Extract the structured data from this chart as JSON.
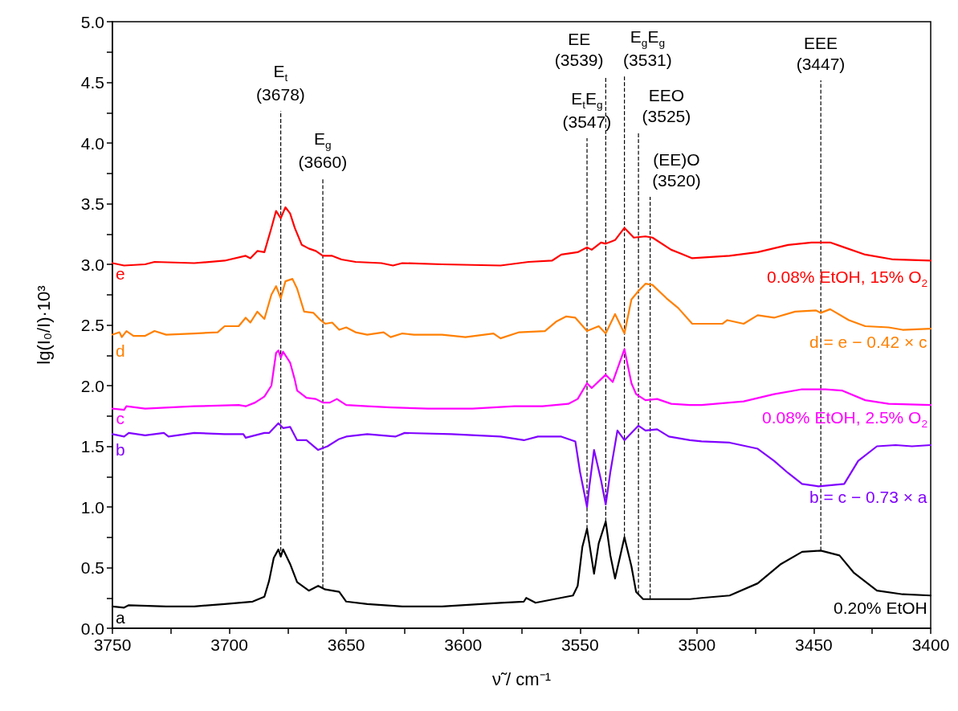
{
  "chart_data": {
    "type": "line",
    "xlabel": "ν̃ / cm⁻¹",
    "ylabel": "lg(I₀/I)·10³",
    "xlim": [
      3750,
      3400
    ],
    "ylim": [
      0,
      5
    ],
    "xticks": [
      3750,
      {
        "value": 3725,
        "label": null
      },
      3700,
      {
        "value": 3675,
        "label": null
      },
      3650,
      {
        "value": 3625,
        "label": null
      },
      3600,
      {
        "value": 3575,
        "label": null
      },
      3550,
      {
        "value": 3525,
        "label": null
      },
      3500,
      {
        "value": 3475,
        "label": null
      },
      3450,
      {
        "value": 3425,
        "label": null
      },
      3400
    ],
    "yticks": [
      {
        "value": 0,
        "label": "0.0"
      },
      {
        "value": 0.25,
        "label": null
      },
      0.5,
      {
        "value": 0.75,
        "label": null
      },
      {
        "value": 1,
        "label": "1.0"
      },
      {
        "value": 1.25,
        "label": null
      },
      1.5,
      {
        "value": 1.75,
        "label": null
      },
      {
        "value": 2,
        "label": "2.0"
      },
      {
        "value": 2.25,
        "label": null
      },
      2.5,
      {
        "value": 2.75,
        "label": null
      },
      {
        "value": 3,
        "label": "3.0"
      },
      {
        "value": 3.25,
        "label": null
      },
      3.5,
      {
        "value": 3.75,
        "label": null
      },
      {
        "value": 4,
        "label": "4.0"
      },
      {
        "value": 4.25,
        "label": null
      },
      4.5,
      {
        "value": 4.75,
        "label": null
      },
      {
        "value": 5,
        "label": "5.0"
      }
    ],
    "marker": "none",
    "series": [
      {
        "name": "0.20% EtOH",
        "color": "#000000",
        "x": [
          3750,
          3745,
          3743,
          3727,
          3715,
          3702,
          3690,
          3685,
          3683,
          3681,
          3679,
          3678,
          3677,
          3674,
          3671,
          3666,
          3662,
          3659,
          3653,
          3650,
          3641,
          3626,
          3609,
          3584,
          3574,
          3573,
          3569,
          3553,
          3551,
          3549,
          3547,
          3544,
          3542,
          3539,
          3537,
          3535,
          3533,
          3531,
          3528,
          3526,
          3523,
          3517,
          3503,
          3498,
          3486,
          3474,
          3464,
          3455,
          3447,
          3439,
          3433,
          3423,
          3412,
          3400
        ],
        "values": [
          0.18,
          0.17,
          0.19,
          0.18,
          0.18,
          0.2,
          0.22,
          0.26,
          0.39,
          0.58,
          0.65,
          0.59,
          0.65,
          0.53,
          0.38,
          0.31,
          0.35,
          0.32,
          0.3,
          0.22,
          0.2,
          0.18,
          0.18,
          0.21,
          0.22,
          0.25,
          0.21,
          0.27,
          0.35,
          0.67,
          0.82,
          0.45,
          0.7,
          0.88,
          0.6,
          0.41,
          0.58,
          0.75,
          0.51,
          0.3,
          0.24,
          0.24,
          0.24,
          0.25,
          0.27,
          0.37,
          0.53,
          0.63,
          0.64,
          0.6,
          0.46,
          0.31,
          0.28,
          0.27
        ]
      },
      {
        "name": "b = c − 0.73 × a",
        "color": "#8000ff",
        "x": [
          3750,
          3745,
          3743,
          3736,
          3728,
          3726,
          3715,
          3702,
          3694,
          3693,
          3685,
          3683,
          3679,
          3677,
          3674,
          3671,
          3667,
          3662,
          3658,
          3653,
          3650,
          3641,
          3629,
          3625,
          3605,
          3584,
          3574,
          3568,
          3558,
          3552,
          3550,
          3547,
          3546,
          3544,
          3541,
          3539,
          3537,
          3534,
          3531,
          3525,
          3522,
          3517,
          3512,
          3503,
          3498,
          3486,
          3474,
          3467,
          3461,
          3455,
          3448,
          3437,
          3431,
          3423,
          3415,
          3408,
          3400
        ],
        "values": [
          1.6,
          1.58,
          1.61,
          1.59,
          1.61,
          1.58,
          1.61,
          1.6,
          1.6,
          1.57,
          1.61,
          1.61,
          1.69,
          1.65,
          1.66,
          1.55,
          1.55,
          1.47,
          1.5,
          1.56,
          1.58,
          1.6,
          1.58,
          1.61,
          1.6,
          1.58,
          1.55,
          1.58,
          1.58,
          1.54,
          1.29,
          1.0,
          1.17,
          1.47,
          1.22,
          1.02,
          1.29,
          1.63,
          1.55,
          1.67,
          1.63,
          1.64,
          1.58,
          1.55,
          1.54,
          1.53,
          1.48,
          1.38,
          1.28,
          1.19,
          1.17,
          1.19,
          1.38,
          1.5,
          1.51,
          1.5,
          1.51
        ]
      },
      {
        "name": "0.08% EtOH, 2.5% O$_{2}$",
        "color": "#ff00ff",
        "x": [
          3750,
          3745,
          3744,
          3736,
          3715,
          3696,
          3693,
          3689,
          3685,
          3682,
          3680,
          3679,
          3678,
          3677,
          3674,
          3672,
          3671,
          3667,
          3663,
          3660,
          3657,
          3654,
          3650,
          3641,
          3631,
          3615,
          3596,
          3578,
          3566,
          3555,
          3551,
          3547,
          3545,
          3539,
          3536,
          3531,
          3528,
          3526,
          3522,
          3517,
          3511,
          3503,
          3498,
          3480,
          3467,
          3455,
          3445,
          3438,
          3428,
          3418,
          3400
        ],
        "values": [
          1.81,
          1.8,
          1.83,
          1.81,
          1.83,
          1.84,
          1.83,
          1.86,
          1.91,
          2.0,
          2.27,
          2.29,
          2.23,
          2.28,
          2.19,
          2.05,
          1.96,
          1.9,
          1.89,
          1.86,
          1.86,
          1.89,
          1.84,
          1.83,
          1.82,
          1.81,
          1.81,
          1.83,
          1.83,
          1.85,
          1.89,
          2.02,
          1.98,
          2.09,
          2.03,
          2.3,
          2.02,
          1.93,
          1.88,
          1.89,
          1.85,
          1.84,
          1.84,
          1.87,
          1.93,
          1.97,
          1.97,
          1.96,
          1.88,
          1.85,
          1.84
        ]
      },
      {
        "name": "d = e − 0.42 × c",
        "color": "#ff8000",
        "x": [
          3750,
          3747,
          3746,
          3744,
          3741,
          3736,
          3732,
          3727,
          3715,
          3705,
          3702,
          3696,
          3693,
          3691,
          3688,
          3685,
          3682,
          3680,
          3678,
          3676,
          3673,
          3671,
          3668,
          3664,
          3661,
          3659,
          3656,
          3653,
          3650,
          3646,
          3641,
          3634,
          3631,
          3626,
          3621,
          3609,
          3599,
          3587,
          3584,
          3576,
          3565,
          3560,
          3556,
          3552,
          3547,
          3542,
          3539,
          3535,
          3531,
          3528,
          3525,
          3522,
          3519,
          3513,
          3508,
          3502,
          3489,
          3487,
          3480,
          3474,
          3467,
          3458,
          3449,
          3447,
          3443,
          3435,
          3428,
          3418,
          3412,
          3400
        ],
        "values": [
          2.42,
          2.44,
          2.4,
          2.45,
          2.41,
          2.41,
          2.45,
          2.42,
          2.43,
          2.44,
          2.49,
          2.49,
          2.56,
          2.52,
          2.61,
          2.55,
          2.75,
          2.82,
          2.72,
          2.86,
          2.88,
          2.8,
          2.61,
          2.6,
          2.54,
          2.51,
          2.52,
          2.46,
          2.48,
          2.44,
          2.42,
          2.44,
          2.4,
          2.43,
          2.42,
          2.42,
          2.4,
          2.43,
          2.39,
          2.44,
          2.45,
          2.53,
          2.57,
          2.56,
          2.45,
          2.49,
          2.43,
          2.59,
          2.43,
          2.71,
          2.78,
          2.84,
          2.83,
          2.72,
          2.64,
          2.51,
          2.51,
          2.54,
          2.51,
          2.58,
          2.56,
          2.61,
          2.62,
          2.6,
          2.63,
          2.54,
          2.49,
          2.48,
          2.46,
          2.47
        ]
      },
      {
        "name": "0.08% EtOH, 15% O$_{2}$",
        "color": "#ff0000",
        "x": [
          3750,
          3745,
          3736,
          3732,
          3715,
          3702,
          3693,
          3691,
          3688,
          3685,
          3682,
          3680,
          3678,
          3676,
          3674,
          3672,
          3669,
          3666,
          3663,
          3660,
          3656,
          3652,
          3646,
          3635,
          3630,
          3626,
          3609,
          3584,
          3572,
          3562,
          3558,
          3551,
          3547,
          3545,
          3541,
          3539,
          3535,
          3531,
          3527,
          3522,
          3519,
          3511,
          3507,
          3502,
          3486,
          3474,
          3461,
          3451,
          3443,
          3437,
          3428,
          3416,
          3400
        ],
        "values": [
          3.01,
          2.99,
          3.0,
          3.02,
          3.01,
          3.03,
          3.07,
          3.05,
          3.11,
          3.1,
          3.3,
          3.44,
          3.38,
          3.47,
          3.42,
          3.3,
          3.16,
          3.13,
          3.11,
          3.07,
          3.07,
          3.04,
          3.02,
          3.01,
          2.99,
          3.01,
          3.0,
          2.99,
          3.02,
          3.03,
          3.08,
          3.1,
          3.14,
          3.12,
          3.18,
          3.17,
          3.2,
          3.3,
          3.22,
          3.23,
          3.22,
          3.12,
          3.09,
          3.05,
          3.07,
          3.1,
          3.16,
          3.18,
          3.18,
          3.14,
          3.08,
          3.04,
          3.03
        ]
      }
    ],
    "annotations": [
      "a",
      "b",
      "c",
      "d",
      "e"
    ],
    "ref_lines": [
      {
        "axis": "x",
        "value": 3678,
        "label": "E$_{t}$\n(3678)",
        "line_style": "dashed",
        "color": "#000000"
      },
      {
        "axis": "x",
        "value": 3660,
        "label": "E$_{g}$\n(3660)",
        "line_style": "dashed",
        "color": "#000000"
      },
      {
        "axis": "x",
        "value": 3547,
        "label": "E$_{t}$E$_{g}$\n(3547)",
        "line_style": "dashed",
        "color": "#000000"
      },
      {
        "axis": "x",
        "value": 3539,
        "label": "EE\n(3539)",
        "line_style": "dashed",
        "color": "#000000"
      },
      {
        "axis": "x",
        "value": 3531,
        "label": "E$_{g}$E$_{g}$\n(3531)",
        "line_style": "dashed",
        "color": "#000000"
      },
      {
        "axis": "x",
        "value": 3525,
        "label": "EEO\n(3525)",
        "line_style": "dashed",
        "color": "#000000"
      },
      {
        "axis": "x",
        "value": 3520,
        "label": "(EE)O\n(3520)",
        "line_style": "dashed",
        "color": "#000000"
      },
      {
        "axis": "x",
        "value": 3447,
        "label": "EEE\n(3447)",
        "line_style": "dashed",
        "color": "#000000"
      }
    ]
  }
}
